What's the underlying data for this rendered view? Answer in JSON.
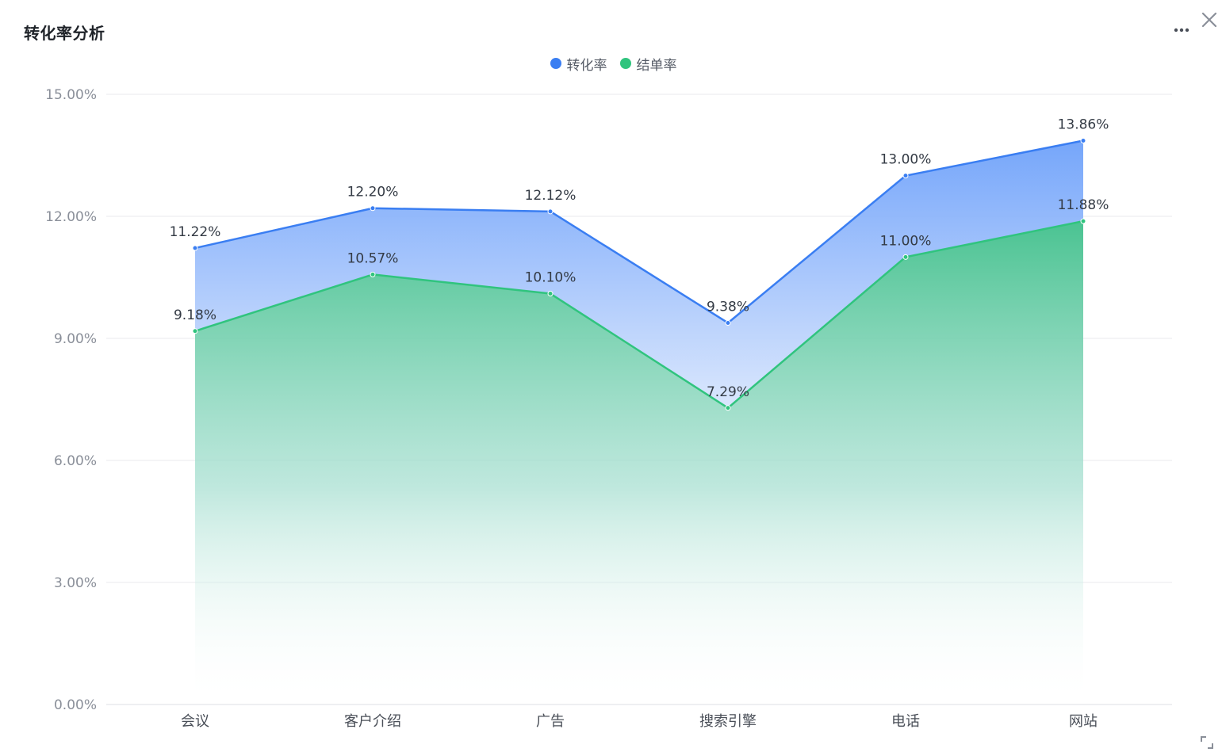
{
  "panel": {
    "title": "转化率分析"
  },
  "icons": {
    "more": "more-dots-icon",
    "close": "close-icon",
    "expand": "expand-icon"
  },
  "colors": {
    "series_1": "#3a7ef2",
    "series_2": "#30c47e",
    "grid": "#e8eaee"
  },
  "chart_data": {
    "type": "area",
    "categories": [
      "会议",
      "客户介绍",
      "广告",
      "搜索引擎",
      "电话",
      "网站"
    ],
    "series": [
      {
        "name": "转化率",
        "values": [
          11.22,
          12.2,
          12.12,
          9.38,
          13.0,
          13.86
        ],
        "labels": [
          "11.22%",
          "12.20%",
          "12.12%",
          "9.38%",
          "13.00%",
          "13.86%"
        ]
      },
      {
        "name": "结单率",
        "values": [
          9.18,
          10.57,
          10.1,
          7.29,
          11.0,
          11.88
        ],
        "labels": [
          "9.18%",
          "10.57%",
          "10.10%",
          "7.29%",
          "11.00%",
          "11.88%"
        ]
      }
    ],
    "ylim": [
      0,
      15
    ],
    "yticks": [
      0,
      3,
      6,
      9,
      12,
      15
    ],
    "ytick_labels": [
      "0.00%",
      "3.00%",
      "6.00%",
      "9.00%",
      "12.00%",
      "15.00%"
    ],
    "legend_position": "top-center",
    "grid": true
  }
}
